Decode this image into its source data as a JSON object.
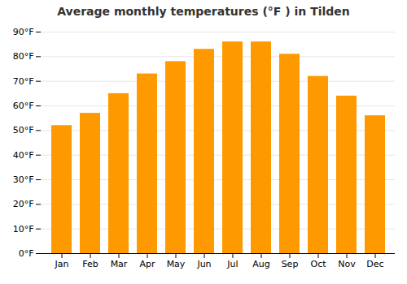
{
  "chart_data": {
    "type": "bar",
    "title": "Average monthly temperatures (°F ) in Tilden",
    "categories": [
      "Jan",
      "Feb",
      "Mar",
      "Apr",
      "May",
      "Jun",
      "Jul",
      "Aug",
      "Sep",
      "Oct",
      "Nov",
      "Dec"
    ],
    "values": [
      52,
      57,
      65,
      73,
      78,
      83,
      86,
      86,
      81,
      72,
      64,
      56
    ],
    "color": "#FF9900",
    "ylim": [
      0,
      90
    ],
    "yticks": [
      {
        "value": 0,
        "label": "0°F"
      },
      {
        "value": 10,
        "label": "10°F"
      },
      {
        "value": 20,
        "label": "20°F"
      },
      {
        "value": 30,
        "label": "30°F"
      },
      {
        "value": 40,
        "label": "40°F"
      },
      {
        "value": 50,
        "label": "50°F"
      },
      {
        "value": 60,
        "label": "60°F"
      },
      {
        "value": 70,
        "label": "70°F"
      },
      {
        "value": 80,
        "label": "80°F"
      },
      {
        "value": 90,
        "label": "90°F"
      }
    ],
    "grid": true
  }
}
